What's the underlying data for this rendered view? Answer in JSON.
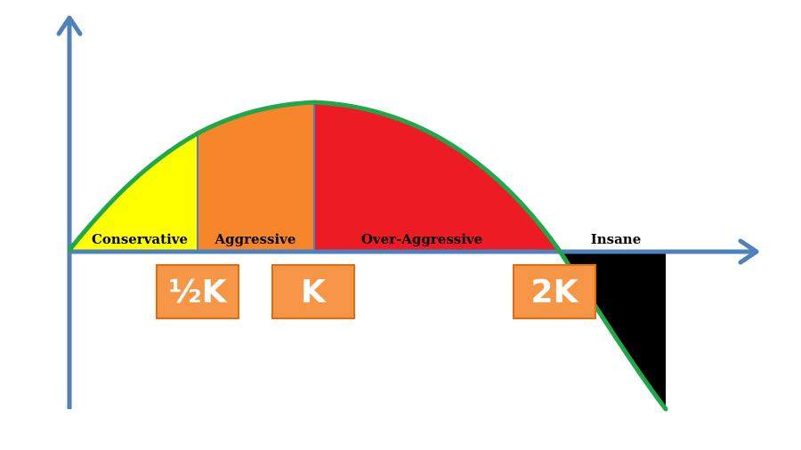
{
  "zones": [
    {
      "label": "Conservative",
      "color": "#ffff00"
    },
    {
      "label": "Aggressive",
      "color": "#f7862a"
    },
    {
      "label": "Over-Aggressive",
      "color": "#ed1c24"
    },
    {
      "label": "Insane",
      "color": "#000000"
    }
  ],
  "markers": [
    {
      "label": "½K"
    },
    {
      "label": "K"
    },
    {
      "label": "2K"
    }
  ],
  "colors": {
    "axis": "#4f81bd",
    "curve": "#1fa84a",
    "marker_fill": "#f79646",
    "marker_border": "#e46c0a"
  }
}
